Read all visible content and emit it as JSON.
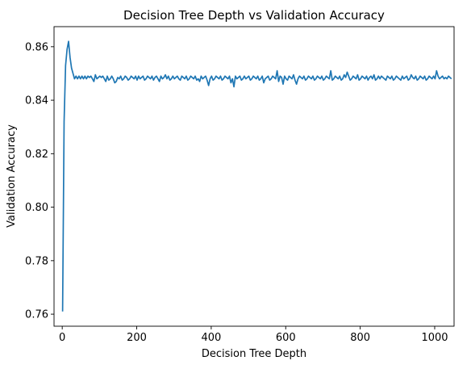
{
  "chart_data": {
    "type": "line",
    "title": "Decision Tree Depth vs Validation Accuracy",
    "xlabel": "Decision Tree Depth",
    "ylabel": "Validation Accuracy",
    "xlim": [
      -22,
      1052
    ],
    "ylim": [
      0.7555,
      0.8675
    ],
    "xticks": [
      0,
      200,
      400,
      600,
      800,
      1000
    ],
    "xtick_labels": [
      "0",
      "200",
      "400",
      "600",
      "800",
      "1000"
    ],
    "yticks": [
      0.76,
      0.78,
      0.8,
      0.82,
      0.84,
      0.86
    ],
    "ytick_labels": [
      "0.76",
      "0.78",
      "0.80",
      "0.82",
      "0.84",
      "0.86"
    ],
    "grid": false,
    "legend": null,
    "series": [
      {
        "name": "validation accuracy",
        "color": "#1f77b4",
        "x_start": 1,
        "x_step": 4,
        "values": [
          0.761,
          0.832,
          0.853,
          0.859,
          0.862,
          0.856,
          0.852,
          0.85,
          0.848,
          0.849,
          0.848,
          0.849,
          0.848,
          0.849,
          0.848,
          0.849,
          0.848,
          0.849,
          0.8485,
          0.849,
          0.848,
          0.847,
          0.8495,
          0.848,
          0.8485,
          0.849,
          0.8485,
          0.849,
          0.848,
          0.847,
          0.849,
          0.8475,
          0.848,
          0.849,
          0.848,
          0.8465,
          0.847,
          0.8485,
          0.848,
          0.849,
          0.8475,
          0.848,
          0.849,
          0.8485,
          0.8475,
          0.848,
          0.849,
          0.8485,
          0.848,
          0.849,
          0.8475,
          0.849,
          0.848,
          0.8485,
          0.849,
          0.8475,
          0.848,
          0.849,
          0.8485,
          0.848,
          0.849,
          0.8475,
          0.8485,
          0.849,
          0.848,
          0.847,
          0.849,
          0.848,
          0.8485,
          0.8495,
          0.848,
          0.849,
          0.8475,
          0.848,
          0.849,
          0.848,
          0.8485,
          0.849,
          0.848,
          0.8475,
          0.849,
          0.8485,
          0.848,
          0.849,
          0.8475,
          0.848,
          0.849,
          0.8485,
          0.848,
          0.849,
          0.8475,
          0.848,
          0.847,
          0.849,
          0.848,
          0.8485,
          0.849,
          0.8475,
          0.8455,
          0.848,
          0.849,
          0.8475,
          0.848,
          0.849,
          0.8485,
          0.848,
          0.849,
          0.8475,
          0.848,
          0.849,
          0.8485,
          0.848,
          0.849,
          0.8465,
          0.848,
          0.845,
          0.849,
          0.848,
          0.8485,
          0.849,
          0.8475,
          0.848,
          0.849,
          0.848,
          0.8485,
          0.849,
          0.8475,
          0.848,
          0.849,
          0.8485,
          0.848,
          0.849,
          0.8475,
          0.848,
          0.849,
          0.8465,
          0.848,
          0.8485,
          0.849,
          0.8475,
          0.848,
          0.849,
          0.8485,
          0.848,
          0.851,
          0.847,
          0.849,
          0.8485,
          0.846,
          0.849,
          0.848,
          0.8475,
          0.849,
          0.8485,
          0.848,
          0.8495,
          0.8475,
          0.846,
          0.848,
          0.849,
          0.8485,
          0.848,
          0.849,
          0.8475,
          0.848,
          0.849,
          0.8485,
          0.848,
          0.849,
          0.8475,
          0.848,
          0.849,
          0.8485,
          0.848,
          0.849,
          0.8475,
          0.848,
          0.849,
          0.8485,
          0.848,
          0.851,
          0.8475,
          0.848,
          0.849,
          0.8485,
          0.848,
          0.849,
          0.8475,
          0.848,
          0.8495,
          0.8485,
          0.8505,
          0.849,
          0.8475,
          0.848,
          0.849,
          0.8485,
          0.848,
          0.8495,
          0.8475,
          0.848,
          0.849,
          0.8485,
          0.848,
          0.849,
          0.8475,
          0.8485,
          0.849,
          0.848,
          0.8495,
          0.8475,
          0.848,
          0.849,
          0.848,
          0.849,
          0.8485,
          0.848,
          0.8475,
          0.849,
          0.8485,
          0.848,
          0.849,
          0.8475,
          0.848,
          0.849,
          0.8485,
          0.848,
          0.8475,
          0.849,
          0.848,
          0.8485,
          0.849,
          0.8475,
          0.848,
          0.8495,
          0.8485,
          0.848,
          0.849,
          0.8475,
          0.848,
          0.849,
          0.8485,
          0.848,
          0.849,
          0.8475,
          0.848,
          0.849,
          0.8485,
          0.848,
          0.849,
          0.848,
          0.851,
          0.849,
          0.848,
          0.8485,
          0.849,
          0.848,
          0.8485,
          0.848,
          0.849,
          0.8485,
          0.848
        ]
      }
    ]
  }
}
